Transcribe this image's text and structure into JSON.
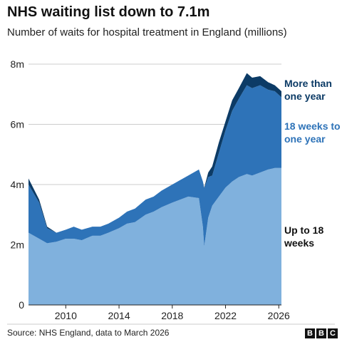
{
  "chart_data": {
    "type": "stacked-area",
    "title": "NHS waiting list down to 7.1m",
    "subtitle": "Number of waits for hospital treatment in England (millions)",
    "source": "Source: NHS England, data to March 2026",
    "x": [
      2007.2,
      2008.0,
      2008.6,
      2009.3,
      2010.0,
      2010.6,
      2011.2,
      2012.0,
      2012.6,
      2013.2,
      2014.0,
      2014.6,
      2015.2,
      2016.0,
      2016.6,
      2017.2,
      2018.0,
      2018.6,
      2019.2,
      2020.0,
      2020.3,
      2020.4,
      2020.7,
      2021.0,
      2021.5,
      2022.0,
      2022.5,
      2023.0,
      2023.6,
      2024.0,
      2024.6,
      2025.2,
      2025.7,
      2026.2
    ],
    "series": [
      {
        "name": "Up to 18 weeks",
        "color": "#80b1dd",
        "label_color": "#111111",
        "values": [
          2.4,
          2.2,
          2.05,
          2.1,
          2.2,
          2.2,
          2.15,
          2.3,
          2.3,
          2.4,
          2.55,
          2.7,
          2.75,
          3.0,
          3.1,
          3.25,
          3.4,
          3.5,
          3.6,
          3.55,
          2.6,
          1.95,
          2.9,
          3.3,
          3.6,
          3.9,
          4.1,
          4.25,
          4.35,
          4.3,
          4.4,
          4.5,
          4.55,
          4.55
        ]
      },
      {
        "name": "18 weeks to one year",
        "color": "#2e73b8",
        "label_color": "#2e73b8",
        "values": [
          1.6,
          1.2,
          0.5,
          0.3,
          0.3,
          0.4,
          0.35,
          0.3,
          0.3,
          0.3,
          0.35,
          0.4,
          0.45,
          0.5,
          0.5,
          0.55,
          0.6,
          0.65,
          0.7,
          0.95,
          1.5,
          1.93,
          1.35,
          1.0,
          1.45,
          1.9,
          2.35,
          2.6,
          2.95,
          2.9,
          2.9,
          2.65,
          2.55,
          2.35
        ]
      },
      {
        "name": "More than one year",
        "color": "#0c3b66",
        "label_color": "#0c3b66",
        "values": [
          0.2,
          0.1,
          0.05,
          0,
          0,
          0,
          0,
          0,
          0,
          0,
          0,
          0,
          0,
          0,
          0,
          0,
          0,
          0,
          0,
          0,
          0,
          0.02,
          0.15,
          0.3,
          0.35,
          0.3,
          0.35,
          0.35,
          0.4,
          0.35,
          0.3,
          0.25,
          0.2,
          0.2
        ]
      }
    ],
    "xlim": [
      2007.2,
      2026.2
    ],
    "xticks": [
      2010,
      2014,
      2018,
      2022,
      2026
    ],
    "ylim": [
      0,
      8
    ],
    "yticks": [
      {
        "value": 0,
        "label": "0"
      },
      {
        "value": 2,
        "label": "2m"
      },
      {
        "value": 4,
        "label": "4m"
      },
      {
        "value": 6,
        "label": "6m"
      },
      {
        "value": 8,
        "label": "8m"
      }
    ],
    "grid": true
  }
}
